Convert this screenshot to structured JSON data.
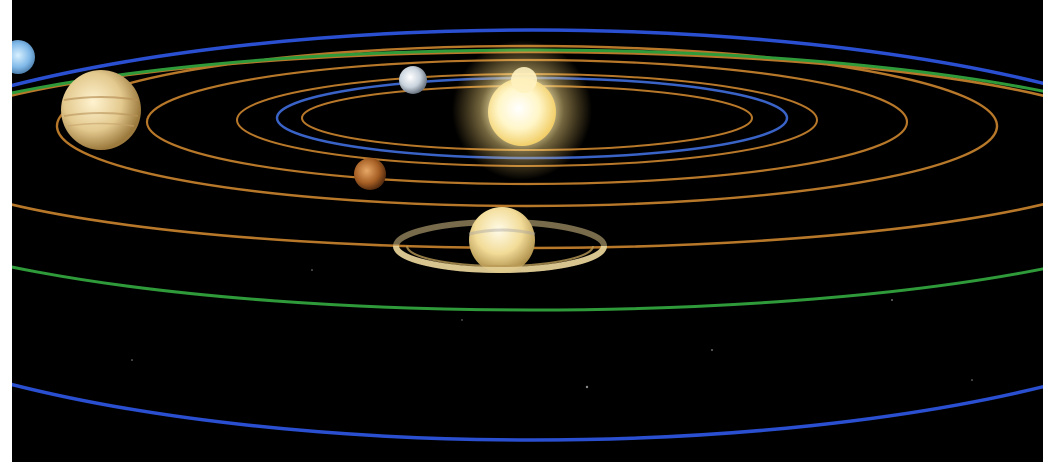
{
  "scene": {
    "subject": "solar-system-illustration",
    "background_color": "#000000",
    "orbit_colors": {
      "inner_blue": "#3a63c8",
      "gold": "#b8782a",
      "green": "#2f9a3a",
      "outer_blue": "#2a4fd0"
    },
    "bodies": [
      {
        "name": "sun",
        "icon": "sun-icon",
        "color": "#fff2b0"
      },
      {
        "name": "mercury",
        "icon": "planet-icon",
        "color": "#e8c27a"
      },
      {
        "name": "venus",
        "icon": "planet-icon",
        "color": "#cfd6df"
      },
      {
        "name": "mars",
        "icon": "planet-icon",
        "color": "#b46a2a"
      },
      {
        "name": "jupiter",
        "icon": "planet-icon",
        "color": "#e6cf95"
      },
      {
        "name": "saturn",
        "icon": "ringed-planet-icon",
        "color": "#f2dfa0"
      },
      {
        "name": "uranus-neptune",
        "icon": "planet-icon",
        "color": "#7fb8e8"
      }
    ]
  }
}
